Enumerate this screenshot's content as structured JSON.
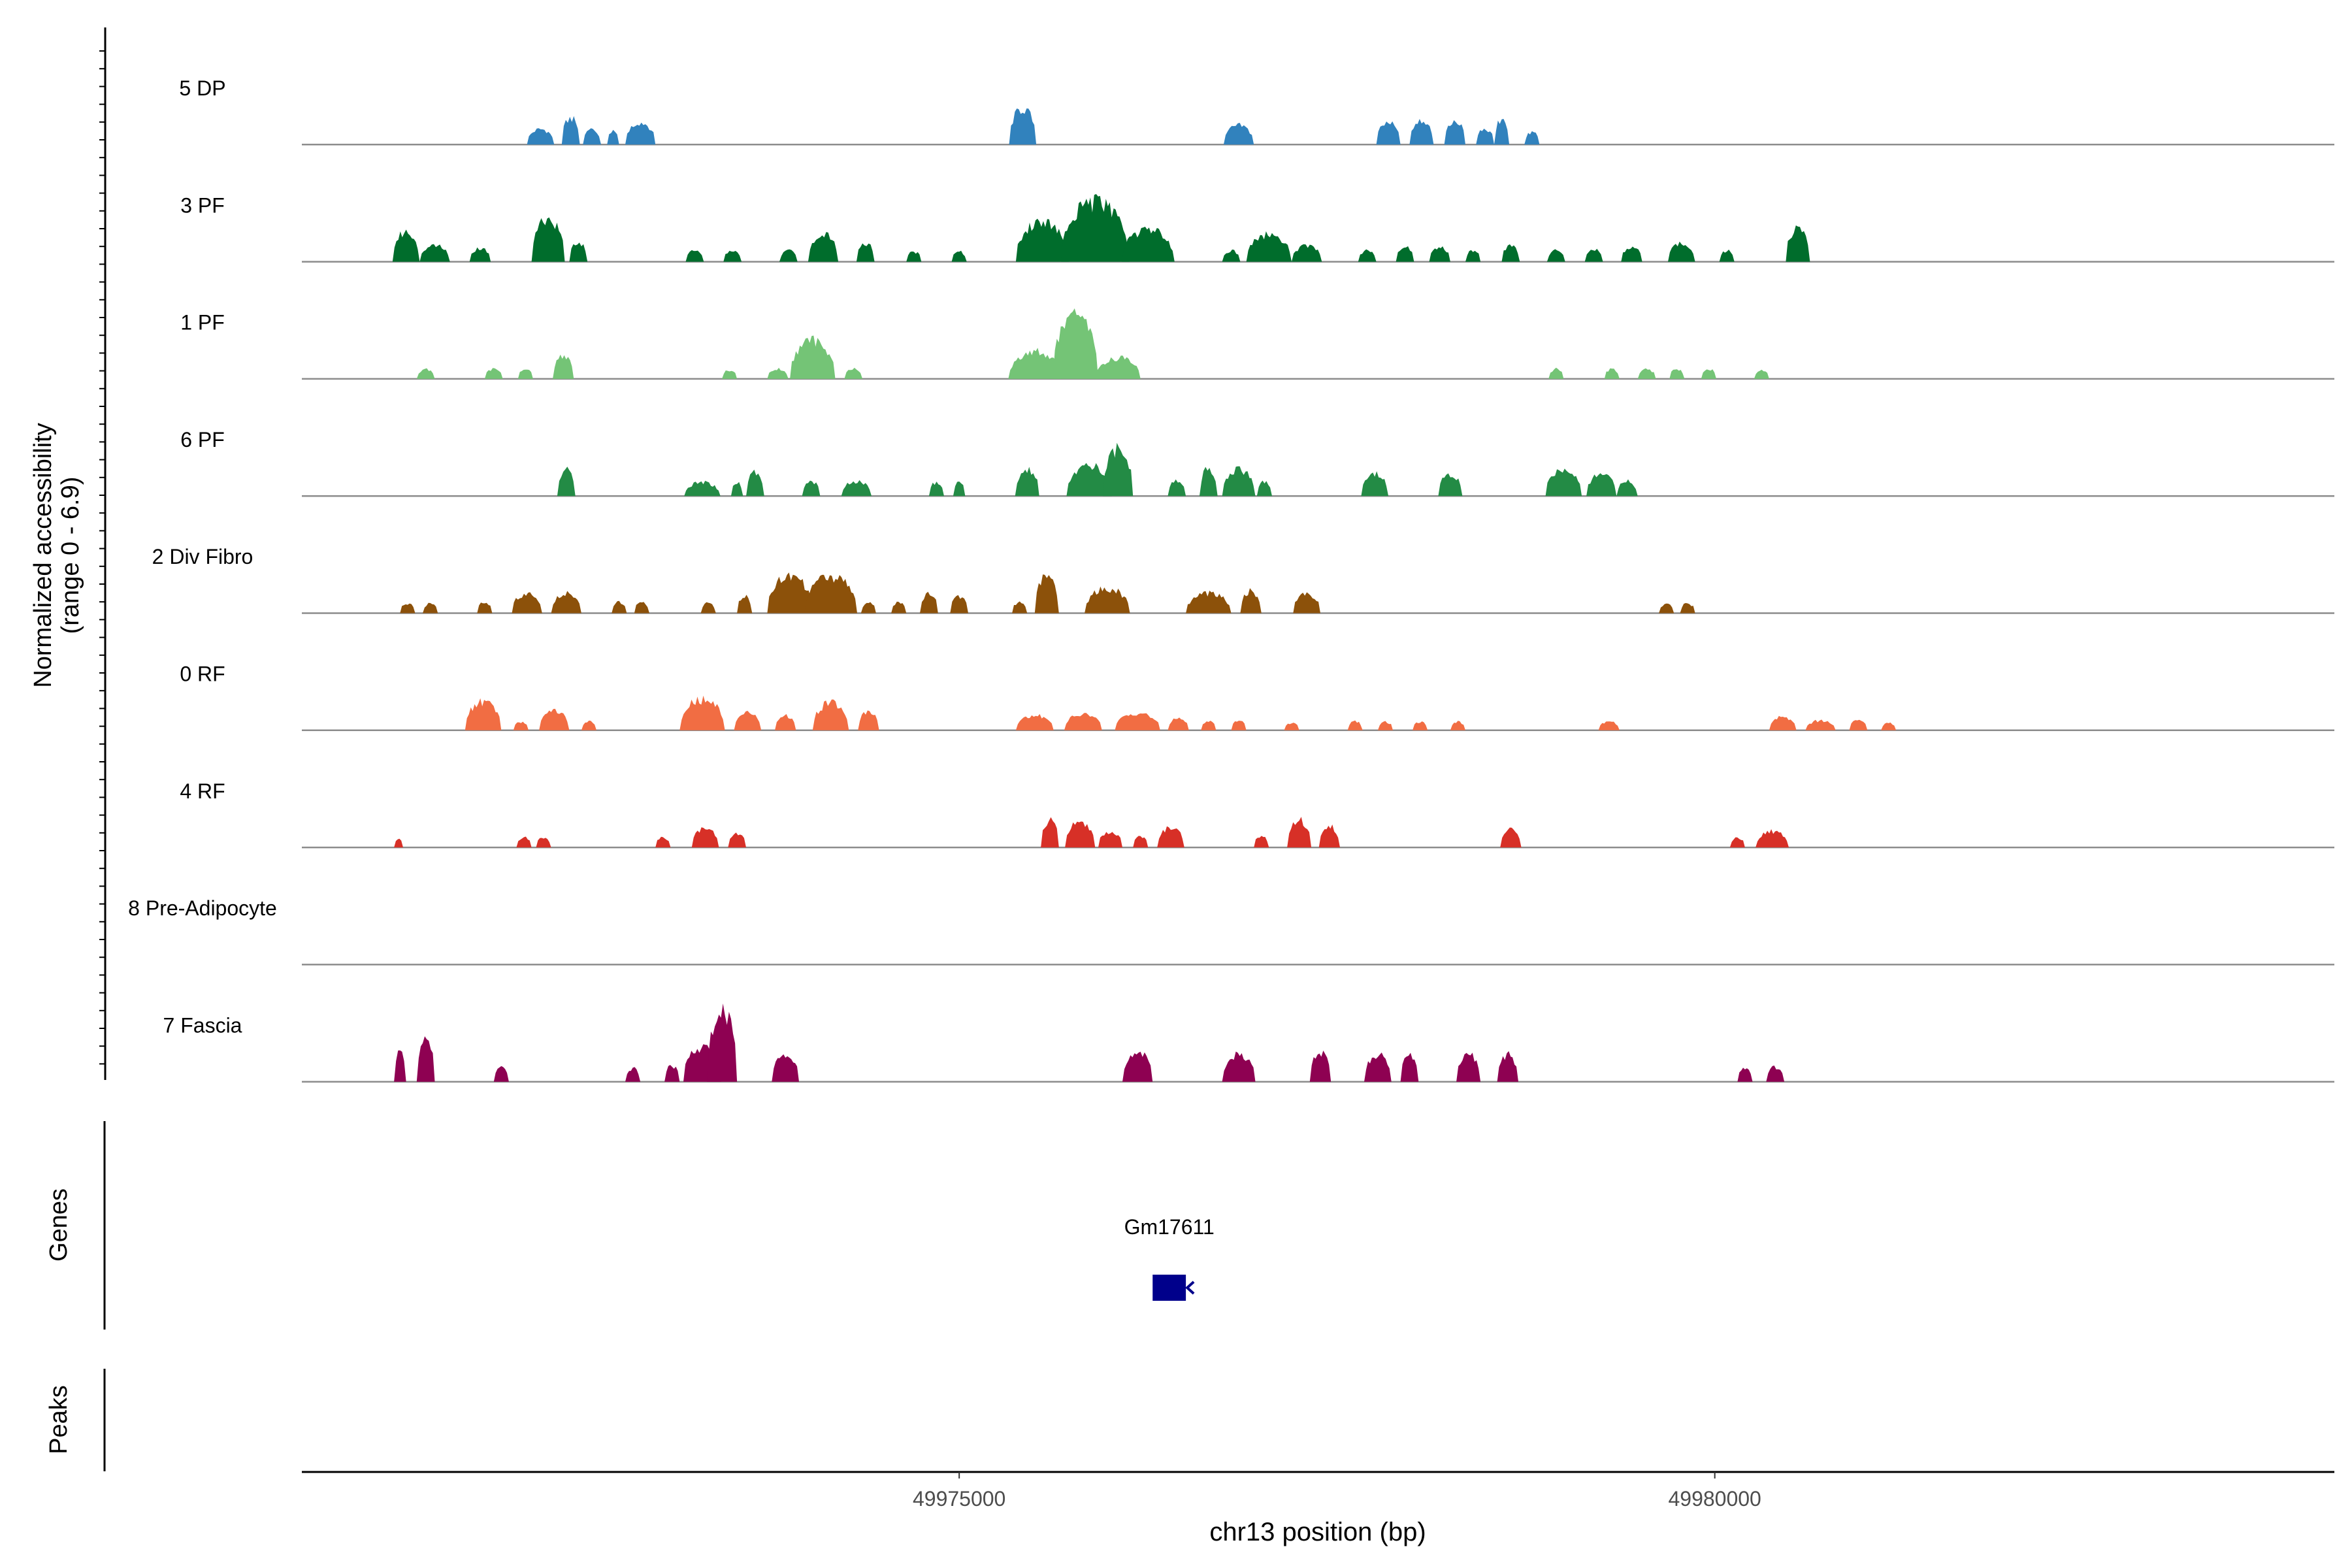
{
  "chart_data": {
    "type": "area",
    "title": "",
    "region": "chr13",
    "xlabel": "chr13 position (bp)",
    "ylabel": "Normalized accessibility",
    "ylabel_range": "(range 0 - 6.9)",
    "ylim": [
      0,
      6.9
    ],
    "xlim": [
      49970650,
      49984100
    ],
    "xticks": [
      49975000,
      49980000
    ],
    "xtick_labels": [
      "49975000",
      "49980000"
    ],
    "panel_labels": {
      "genes": "Genes",
      "peaks": "Peaks"
    },
    "genes": [
      {
        "name": "Gm17611",
        "start": 49976280,
        "end": 49976500,
        "strand": "-"
      }
    ],
    "tracks": [
      {
        "name": "5 DP",
        "color": "#3182bd",
        "peaks": [
          [
            49972230,
            0.18,
            1.25
          ],
          [
            49972430,
            0.12,
            2.15
          ],
          [
            49972570,
            0.12,
            1.25
          ],
          [
            49972710,
            0.08,
            1.1
          ],
          [
            49972890,
            0.2,
            1.8
          ],
          [
            49975420,
            0.18,
            2.9
          ],
          [
            49976850,
            0.2,
            1.55
          ],
          [
            49977840,
            0.16,
            1.75
          ],
          [
            49978060,
            0.16,
            1.95
          ],
          [
            49978280,
            0.14,
            1.9
          ],
          [
            49978480,
            0.12,
            1.3
          ],
          [
            49978590,
            0.1,
            2.0
          ],
          [
            49978790,
            0.1,
            1.0
          ]
        ]
      },
      {
        "name": "3 PF",
        "color": "#006d2c",
        "peaks": [
          [
            49971340,
            0.18,
            2.4
          ],
          [
            49971530,
            0.2,
            1.3
          ],
          [
            49971830,
            0.14,
            1.1
          ],
          [
            49972280,
            0.22,
            3.4
          ],
          [
            49972480,
            0.12,
            1.6
          ],
          [
            49973250,
            0.12,
            0.9
          ],
          [
            49973500,
            0.12,
            0.9
          ],
          [
            49973870,
            0.12,
            0.9
          ],
          [
            49974100,
            0.2,
            2.2
          ],
          [
            49974380,
            0.12,
            1.5
          ],
          [
            49974700,
            0.1,
            0.8
          ],
          [
            49975000,
            0.1,
            0.8
          ],
          [
            49975550,
            0.35,
            3.3
          ],
          [
            49975900,
            0.45,
            4.8
          ],
          [
            49976250,
            0.35,
            2.6
          ],
          [
            49976800,
            0.12,
            0.9
          ],
          [
            49977050,
            0.3,
            2.2
          ],
          [
            49977300,
            0.2,
            1.3
          ],
          [
            49977700,
            0.12,
            0.9
          ],
          [
            49977950,
            0.12,
            1.2
          ],
          [
            49978180,
            0.14,
            1.2
          ],
          [
            49978400,
            0.1,
            0.9
          ],
          [
            49978650,
            0.12,
            1.3
          ],
          [
            49978950,
            0.12,
            0.9
          ],
          [
            49979200,
            0.12,
            1.0
          ],
          [
            49979450,
            0.14,
            1.2
          ],
          [
            49979780,
            0.18,
            1.5
          ],
          [
            49980080,
            0.1,
            0.9
          ],
          [
            49980550,
            0.16,
            2.7
          ]
        ]
      },
      {
        "name": "1 PF",
        "color": "#74c476",
        "peaks": [
          [
            49971470,
            0.12,
            0.8
          ],
          [
            49971920,
            0.12,
            0.8
          ],
          [
            49972130,
            0.1,
            0.8
          ],
          [
            49972380,
            0.14,
            1.9
          ],
          [
            49973480,
            0.1,
            0.7
          ],
          [
            49973800,
            0.14,
            0.8
          ],
          [
            49974030,
            0.3,
            3.1
          ],
          [
            49974300,
            0.12,
            0.8
          ],
          [
            49975500,
            0.35,
            2.2
          ],
          [
            49975770,
            0.3,
            5.2
          ],
          [
            49976050,
            0.3,
            1.7
          ],
          [
            49978950,
            0.1,
            0.8
          ],
          [
            49979320,
            0.1,
            0.8
          ],
          [
            49979550,
            0.12,
            0.8
          ],
          [
            49979750,
            0.1,
            0.8
          ],
          [
            49979960,
            0.1,
            0.8
          ],
          [
            49980310,
            0.1,
            0.7
          ]
        ]
      },
      {
        "name": "6 PF",
        "color": "#238b45",
        "peaks": [
          [
            49972400,
            0.12,
            2.1
          ],
          [
            49973300,
            0.24,
            1.1
          ],
          [
            49973530,
            0.08,
            1.1
          ],
          [
            49973650,
            0.12,
            2.0
          ],
          [
            49974020,
            0.12,
            1.2
          ],
          [
            49974320,
            0.2,
            1.2
          ],
          [
            49974850,
            0.1,
            1.1
          ],
          [
            49975000,
            0.08,
            1.1
          ],
          [
            49975450,
            0.16,
            2.2
          ],
          [
            49975860,
            0.3,
            2.5
          ],
          [
            49976050,
            0.2,
            3.8
          ],
          [
            49976440,
            0.12,
            1.2
          ],
          [
            49976650,
            0.12,
            2.2
          ],
          [
            49976850,
            0.22,
            2.1
          ],
          [
            49977020,
            0.1,
            1.2
          ],
          [
            49977750,
            0.18,
            1.8
          ],
          [
            49978250,
            0.16,
            1.8
          ],
          [
            49979000,
            0.24,
            2.2
          ],
          [
            49979250,
            0.2,
            1.8
          ],
          [
            49979420,
            0.14,
            1.2
          ]
        ]
      },
      {
        "name": "2 Div Fibro",
        "color": "#8c510a",
        "peaks": [
          [
            49971350,
            0.1,
            0.8
          ],
          [
            49971500,
            0.1,
            0.8
          ],
          [
            49971860,
            0.1,
            0.9
          ],
          [
            49972140,
            0.2,
            1.6
          ],
          [
            49972400,
            0.2,
            1.6
          ],
          [
            49972750,
            0.1,
            0.9
          ],
          [
            49972900,
            0.1,
            0.9
          ],
          [
            49973340,
            0.1,
            0.8
          ],
          [
            49973580,
            0.1,
            1.4
          ],
          [
            49973880,
            0.3,
            3.0
          ],
          [
            49974150,
            0.35,
            3.0
          ],
          [
            49974400,
            0.1,
            0.9
          ],
          [
            49974600,
            0.1,
            0.9
          ],
          [
            49974800,
            0.12,
            1.6
          ],
          [
            49975000,
            0.12,
            1.4
          ],
          [
            49975400,
            0.1,
            0.9
          ],
          [
            49975580,
            0.16,
            3.1
          ],
          [
            49975980,
            0.3,
            2.0
          ],
          [
            49976650,
            0.3,
            1.6
          ],
          [
            49976930,
            0.14,
            1.8
          ],
          [
            49977300,
            0.18,
            1.6
          ],
          [
            49979680,
            0.1,
            0.8
          ],
          [
            49979820,
            0.1,
            0.8
          ]
        ]
      },
      {
        "name": "0 RF",
        "color": "#f16d43",
        "peaks": [
          [
            49971850,
            0.24,
            2.3
          ],
          [
            49972100,
            0.1,
            0.7
          ],
          [
            49972320,
            0.2,
            1.6
          ],
          [
            49972550,
            0.1,
            0.7
          ],
          [
            49973300,
            0.3,
            2.5
          ],
          [
            49973600,
            0.18,
            1.4
          ],
          [
            49973850,
            0.14,
            1.2
          ],
          [
            49974150,
            0.24,
            2.2
          ],
          [
            49974400,
            0.14,
            1.5
          ],
          [
            49975500,
            0.25,
            1.2
          ],
          [
            49975820,
            0.25,
            1.3
          ],
          [
            49976180,
            0.3,
            1.4
          ],
          [
            49976450,
            0.14,
            1.0
          ],
          [
            49976650,
            0.1,
            0.8
          ],
          [
            49976850,
            0.1,
            0.8
          ],
          [
            49977200,
            0.1,
            0.6
          ],
          [
            49977620,
            0.1,
            0.7
          ],
          [
            49977820,
            0.1,
            0.7
          ],
          [
            49978050,
            0.1,
            0.7
          ],
          [
            49978300,
            0.1,
            0.7
          ],
          [
            49979300,
            0.14,
            0.7
          ],
          [
            49980450,
            0.18,
            1.1
          ],
          [
            49980700,
            0.2,
            0.8
          ],
          [
            49980950,
            0.12,
            0.8
          ],
          [
            49981150,
            0.1,
            0.6
          ]
        ]
      },
      {
        "name": "4 RF",
        "color": "#d73027",
        "peaks": [
          [
            49971290,
            0.06,
            0.7
          ],
          [
            49972120,
            0.1,
            0.8
          ],
          [
            49972250,
            0.1,
            0.8
          ],
          [
            49973040,
            0.1,
            0.8
          ],
          [
            49973320,
            0.18,
            1.6
          ],
          [
            49973530,
            0.12,
            1.1
          ],
          [
            49975600,
            0.12,
            2.2
          ],
          [
            49975800,
            0.2,
            2.1
          ],
          [
            49976000,
            0.16,
            1.3
          ],
          [
            49976200,
            0.1,
            0.9
          ],
          [
            49976400,
            0.18,
            1.6
          ],
          [
            49977000,
            0.1,
            0.9
          ],
          [
            49977250,
            0.16,
            2.2
          ],
          [
            49977450,
            0.14,
            1.7
          ],
          [
            49978650,
            0.14,
            1.5
          ],
          [
            49980150,
            0.1,
            0.8
          ],
          [
            49980380,
            0.22,
            1.3
          ]
        ]
      },
      {
        "name": "8 Pre-Adipocyte",
        "color": "#7570b3",
        "peaks": []
      },
      {
        "name": "7 Fascia",
        "color": "#8e0152",
        "peaks": [
          [
            49971300,
            0.08,
            2.4
          ],
          [
            49971470,
            0.12,
            3.4
          ],
          [
            49971970,
            0.1,
            1.1
          ],
          [
            49972840,
            0.1,
            1.1
          ],
          [
            49973100,
            0.1,
            1.3
          ],
          [
            49973300,
            0.25,
            2.8
          ],
          [
            49973430,
            0.2,
            5.7
          ],
          [
            49973850,
            0.18,
            2.3
          ],
          [
            49976180,
            0.2,
            2.5
          ],
          [
            49976850,
            0.22,
            2.2
          ],
          [
            49977390,
            0.14,
            2.3
          ],
          [
            49977770,
            0.18,
            2.2
          ],
          [
            49977980,
            0.12,
            2.3
          ],
          [
            49978370,
            0.16,
            2.2
          ],
          [
            49978630,
            0.14,
            2.2
          ],
          [
            49980200,
            0.1,
            1.1
          ],
          [
            49980400,
            0.12,
            1.2
          ]
        ]
      }
    ]
  }
}
